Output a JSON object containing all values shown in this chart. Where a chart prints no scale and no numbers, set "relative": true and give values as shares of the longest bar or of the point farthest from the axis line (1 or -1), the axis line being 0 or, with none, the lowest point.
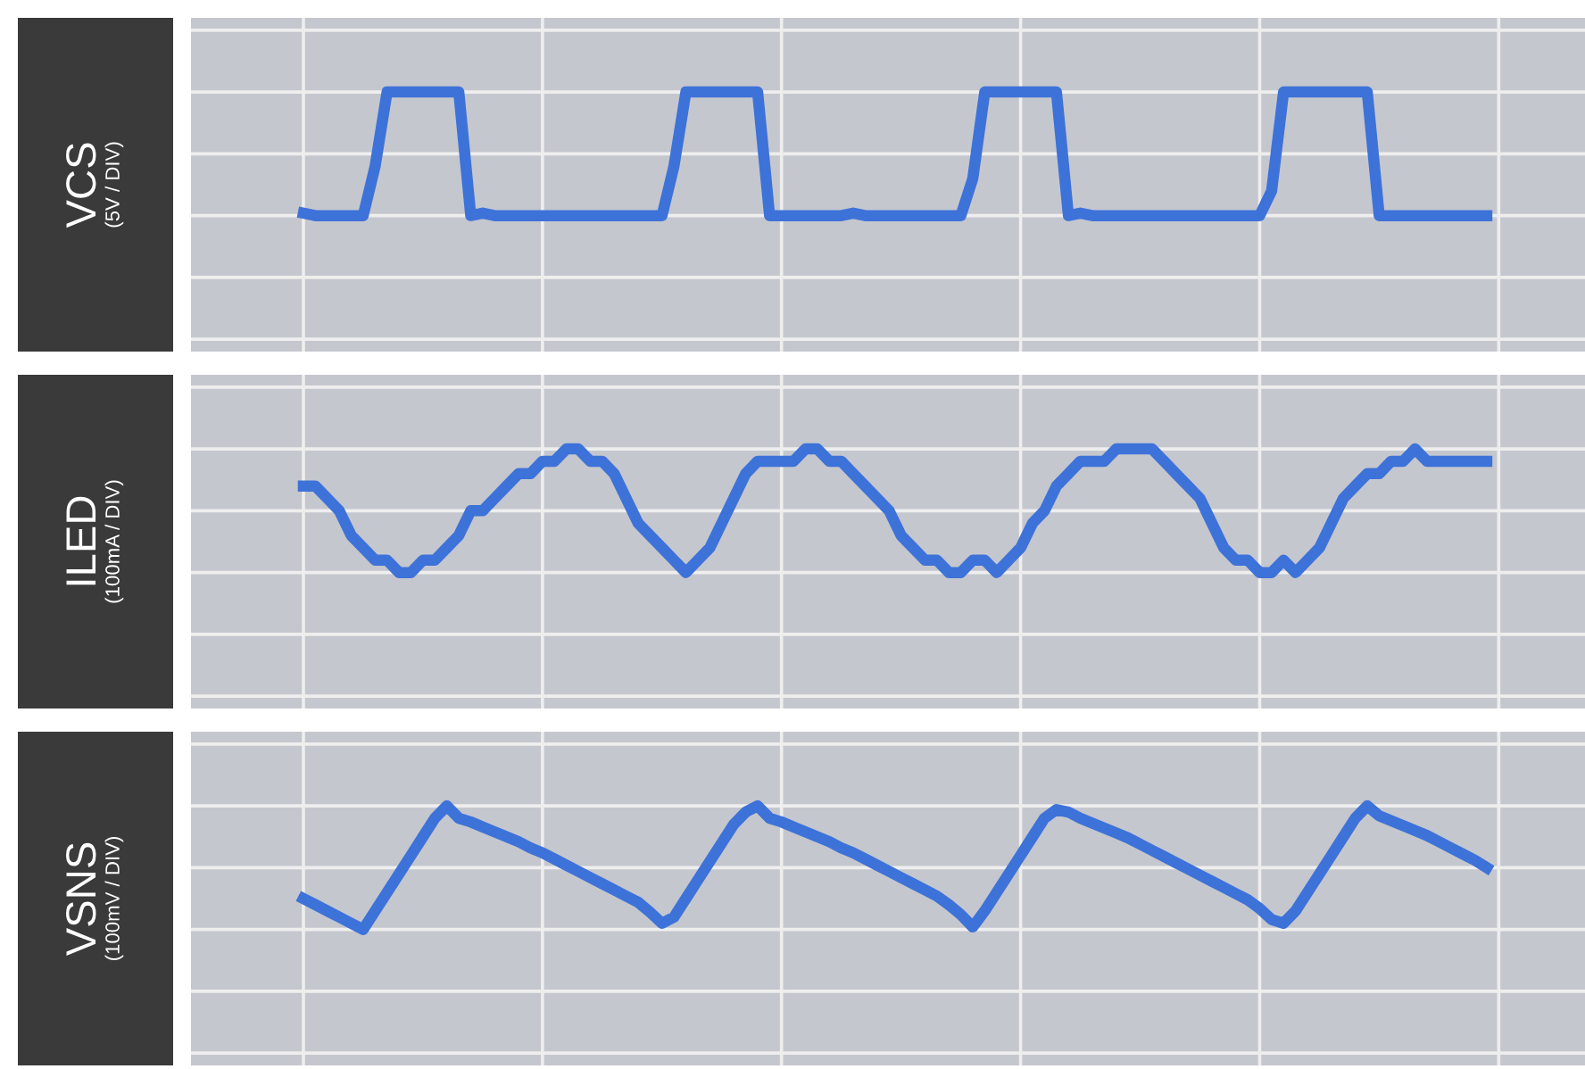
{
  "chart_data": [
    {
      "type": "line",
      "ylabel": "VCS",
      "annotations": [
        "(5V / DIV)"
      ],
      "relative": true,
      "grid": true,
      "tick_labels": false,
      "categories": [
        null,
        null,
        null,
        null,
        null,
        null,
        null,
        null,
        null,
        null,
        null,
        null,
        null,
        null,
        null,
        null,
        null,
        null,
        null,
        null,
        null,
        null,
        null,
        null,
        null,
        null,
        null,
        null,
        null,
        null,
        null,
        null,
        null,
        null,
        null,
        null,
        null,
        null,
        null,
        null,
        null,
        null,
        null,
        null,
        null,
        null,
        null,
        null,
        null,
        null,
        null,
        null,
        null,
        null,
        null,
        null,
        null,
        null,
        null,
        null,
        null,
        null,
        null,
        null,
        null,
        null,
        null,
        null,
        null,
        null,
        null,
        null,
        null,
        null,
        null,
        null,
        null,
        null,
        null,
        null,
        null,
        null,
        null,
        null,
        null,
        null,
        null,
        null,
        null,
        null,
        null,
        null,
        null,
        null,
        null,
        null,
        null,
        null,
        null,
        null
      ],
      "series": [
        {
          "color": "#3d72d9",
          "values": [
            0.02,
            0,
            0,
            0,
            0,
            0,
            0.4,
            1,
            1,
            1,
            1,
            1,
            1,
            1,
            0,
            0.02,
            0,
            0,
            0,
            0,
            0,
            0,
            0,
            0,
            0,
            0,
            0,
            0,
            0,
            0,
            0,
            0.4,
            1,
            1,
            1,
            1,
            1,
            1,
            1,
            0,
            0,
            0,
            0,
            0,
            0,
            0,
            0.02,
            0,
            0,
            0,
            0,
            0,
            0,
            0,
            0,
            0,
            0.3,
            1,
            1,
            1,
            1,
            1,
            1,
            1,
            0,
            0.02,
            0,
            0,
            0,
            0,
            0,
            0,
            0,
            0,
            0,
            0,
            0,
            0,
            0,
            0,
            0,
            0.2,
            1,
            1,
            1,
            1,
            1,
            1,
            1,
            1,
            0,
            0,
            0,
            0,
            0,
            0,
            0,
            0,
            0,
            0
          ]
        }
      ]
    },
    {
      "type": "line",
      "ylabel": "ILED",
      "annotations": [
        "(100mA / DIV)"
      ],
      "relative": true,
      "grid": true,
      "tick_labels": false,
      "categories": [
        null,
        null,
        null,
        null,
        null,
        null,
        null,
        null,
        null,
        null,
        null,
        null,
        null,
        null,
        null,
        null,
        null,
        null,
        null,
        null,
        null,
        null,
        null,
        null,
        null,
        null,
        null,
        null,
        null,
        null,
        null,
        null,
        null,
        null,
        null,
        null,
        null,
        null,
        null,
        null,
        null,
        null,
        null,
        null,
        null,
        null,
        null,
        null,
        null,
        null,
        null,
        null,
        null,
        null,
        null,
        null,
        null,
        null,
        null,
        null,
        null,
        null,
        null,
        null,
        null,
        null,
        null,
        null,
        null,
        null,
        null,
        null,
        null,
        null,
        null,
        null,
        null,
        null,
        null,
        null,
        null,
        null,
        null,
        null,
        null,
        null,
        null,
        null,
        null,
        null,
        null,
        null,
        null,
        null,
        null,
        null,
        null,
        null,
        null,
        null
      ],
      "series": [
        {
          "color": "#3d72d9",
          "values": [
            0.7,
            0.7,
            0.6,
            0.5,
            0.3,
            0.2,
            0.1,
            0.1,
            0,
            0,
            0.1,
            0.1,
            0.2,
            0.3,
            0.5,
            0.5,
            0.6,
            0.7,
            0.8,
            0.8,
            0.9,
            0.9,
            1,
            1,
            0.9,
            0.9,
            0.8,
            0.6,
            0.4,
            0.3,
            0.2,
            0.1,
            0,
            0.1,
            0.2,
            0.4,
            0.6,
            0.8,
            0.9,
            0.9,
            0.9,
            0.9,
            1,
            1,
            0.9,
            0.9,
            0.8,
            0.7,
            0.6,
            0.5,
            0.3,
            0.2,
            0.1,
            0.1,
            0,
            0,
            0.1,
            0.1,
            0,
            0.1,
            0.2,
            0.4,
            0.5,
            0.7,
            0.8,
            0.9,
            0.9,
            0.9,
            1,
            1,
            1,
            1,
            0.9,
            0.8,
            0.7,
            0.6,
            0.4,
            0.2,
            0.1,
            0.1,
            0,
            0,
            0.1,
            0,
            0.1,
            0.2,
            0.4,
            0.6,
            0.7,
            0.8,
            0.8,
            0.9,
            0.9,
            1,
            0.9,
            0.9,
            0.9,
            0.9,
            0.9,
            0.9
          ]
        }
      ]
    },
    {
      "type": "line",
      "ylabel": "VSNS",
      "annotations": [
        "(100mV / DIV)"
      ],
      "relative": true,
      "grid": true,
      "tick_labels": false,
      "categories": [
        null,
        null,
        null,
        null,
        null,
        null,
        null,
        null,
        null,
        null,
        null,
        null,
        null,
        null,
        null,
        null,
        null,
        null,
        null,
        null,
        null,
        null,
        null,
        null,
        null,
        null,
        null,
        null,
        null,
        null,
        null,
        null,
        null,
        null,
        null,
        null,
        null,
        null,
        null,
        null,
        null,
        null,
        null,
        null,
        null,
        null,
        null,
        null,
        null,
        null,
        null,
        null,
        null,
        null,
        null,
        null,
        null,
        null,
        null,
        null,
        null,
        null,
        null,
        null,
        null,
        null,
        null,
        null,
        null,
        null,
        null,
        null,
        null,
        null,
        null,
        null,
        null,
        null,
        null,
        null,
        null,
        null,
        null,
        null,
        null,
        null,
        null,
        null,
        null,
        null,
        null,
        null,
        null,
        null,
        null,
        null,
        null,
        null,
        null,
        null
      ],
      "series": [
        {
          "color": "#3d72d9",
          "values": [
            0.25,
            0.2,
            0.15,
            0.1,
            0.05,
            0,
            0.15,
            0.3,
            0.45,
            0.6,
            0.75,
            0.9,
            1,
            0.9,
            0.87,
            0.83,
            0.79,
            0.75,
            0.71,
            0.66,
            0.62,
            0.57,
            0.52,
            0.47,
            0.42,
            0.37,
            0.32,
            0.27,
            0.22,
            0.14,
            0.05,
            0.1,
            0.25,
            0.4,
            0.55,
            0.7,
            0.85,
            0.95,
            1,
            0.9,
            0.87,
            0.83,
            0.79,
            0.75,
            0.71,
            0.66,
            0.62,
            0.57,
            0.52,
            0.47,
            0.42,
            0.37,
            0.32,
            0.27,
            0.2,
            0.12,
            0.02,
            0.15,
            0.3,
            0.45,
            0.6,
            0.75,
            0.9,
            0.97,
            0.95,
            0.9,
            0.86,
            0.82,
            0.78,
            0.74,
            0.69,
            0.64,
            0.59,
            0.54,
            0.49,
            0.44,
            0.39,
            0.34,
            0.29,
            0.24,
            0.17,
            0.08,
            0.05,
            0.15,
            0.3,
            0.45,
            0.6,
            0.75,
            0.9,
            1,
            0.92,
            0.88,
            0.84,
            0.8,
            0.76,
            0.71,
            0.66,
            0.61,
            0.56,
            0.5
          ]
        }
      ]
    }
  ]
}
